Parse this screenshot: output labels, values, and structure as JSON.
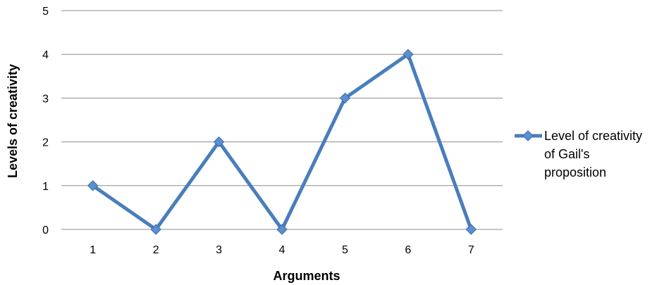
{
  "chart_data": {
    "type": "line",
    "title": "",
    "xlabel": "Arguments",
    "ylabel": "Levels of creativity",
    "categories": [
      "1",
      "2",
      "3",
      "4",
      "5",
      "6",
      "7"
    ],
    "ylim": [
      0,
      5
    ],
    "yticks": [
      "0",
      "1",
      "2",
      "3",
      "4",
      "5"
    ],
    "grid": true,
    "legend_position": "right",
    "series": [
      {
        "name": "Level of creativity of Gail's proposition",
        "legend_lines": [
          "Level of creativity",
          "of Gail's",
          "proposition"
        ],
        "values": [
          1,
          0,
          2,
          0,
          3,
          4,
          0
        ],
        "color": "#4a7ebb",
        "marker": "diamond"
      }
    ]
  }
}
